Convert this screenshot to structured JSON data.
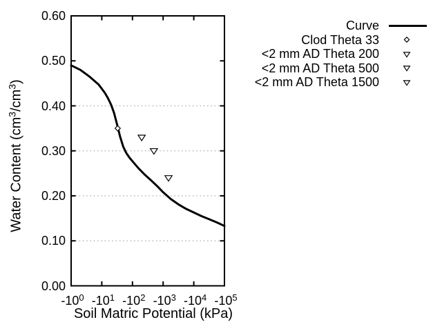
{
  "figure": {
    "background_color": "#ffffff",
    "foreground_color": "#000000",
    "grid_color": "#a8a8a8"
  },
  "x_axis": {
    "label": "Soil Matric Potential (kPa)",
    "tick_labels": [
      {
        "base": "-10",
        "exp": "0"
      },
      {
        "base": "-10",
        "exp": "1"
      },
      {
        "base": "-10",
        "exp": "2"
      },
      {
        "base": "-10",
        "exp": "3"
      },
      {
        "base": "-10",
        "exp": "4"
      },
      {
        "base": "-10",
        "exp": "5"
      }
    ]
  },
  "y_axis": {
    "label_segments": [
      {
        "text": "Water Content (cm"
      },
      {
        "text": "3",
        "sup": true
      },
      {
        "text": "/cm"
      },
      {
        "text": "3",
        "sup": true
      },
      {
        "text": ")"
      }
    ],
    "tick_labels": [
      "0.00",
      "0.10",
      "0.20",
      "0.30",
      "0.40",
      "0.50",
      "0.60"
    ]
  },
  "legend": {
    "items": [
      {
        "label": "Curve",
        "marker": "line"
      },
      {
        "label": "Clod Theta 33",
        "marker": "diamond"
      },
      {
        "label": "<2 mm AD Theta 200",
        "marker": "triangle-down"
      },
      {
        "label": "<2 mm AD Theta 500",
        "marker": "triangle-down"
      },
      {
        "label": "<2 mm AD Theta 1500",
        "marker": "triangle-down"
      }
    ]
  },
  "chart_data": {
    "type": "line",
    "title": "",
    "xlabel": "Soil Matric Potential (kPa)",
    "ylabel": "Water Content (cm3/cm3)",
    "x_scale": "log10 of negative matric potential, decades 0 to 5",
    "x_tick_values_kpa": [
      -1,
      -10,
      -100,
      -1000,
      -10000,
      -100000
    ],
    "ylim": [
      0.0,
      0.6
    ],
    "y_tick_step": 0.1,
    "grid": "horizontal dotted gridlines at 0.10 through 0.50",
    "legend_position": "outside-top-right",
    "series": [
      {
        "name": "Curve",
        "type": "line",
        "marker": "none",
        "points_log10kpa_theta": [
          [
            0.0,
            0.49
          ],
          [
            0.3,
            0.48
          ],
          [
            0.6,
            0.465
          ],
          [
            0.9,
            0.447
          ],
          [
            1.1,
            0.429
          ],
          [
            1.2,
            0.417
          ],
          [
            1.3,
            0.403
          ],
          [
            1.4,
            0.384
          ],
          [
            1.5,
            0.358
          ],
          [
            1.6,
            0.331
          ],
          [
            1.7,
            0.309
          ],
          [
            1.8,
            0.295
          ],
          [
            1.9,
            0.285
          ],
          [
            2.0,
            0.277
          ],
          [
            2.2,
            0.261
          ],
          [
            2.4,
            0.247
          ],
          [
            2.6,
            0.235
          ],
          [
            2.8,
            0.222
          ],
          [
            3.0,
            0.208
          ],
          [
            3.25,
            0.193
          ],
          [
            3.5,
            0.181
          ],
          [
            3.75,
            0.171
          ],
          [
            4.0,
            0.163
          ],
          [
            4.25,
            0.155
          ],
          [
            4.5,
            0.148
          ],
          [
            4.75,
            0.141
          ],
          [
            5.0,
            0.133
          ]
        ]
      },
      {
        "name": "Clod Theta 33",
        "type": "scatter",
        "marker": "diamond",
        "points_kpa_theta": [
          [
            -33,
            0.35
          ]
        ]
      },
      {
        "name": "<2 mm AD Theta 200",
        "type": "scatter",
        "marker": "triangle-down",
        "points_kpa_theta": [
          [
            -200,
            0.33
          ]
        ]
      },
      {
        "name": "<2 mm AD Theta 500",
        "type": "scatter",
        "marker": "triangle-down",
        "points_kpa_theta": [
          [
            -500,
            0.3
          ]
        ]
      },
      {
        "name": "<2 mm AD Theta 1500",
        "type": "scatter",
        "marker": "triangle-down",
        "points_kpa_theta": [
          [
            -1500,
            0.24
          ]
        ]
      }
    ]
  }
}
